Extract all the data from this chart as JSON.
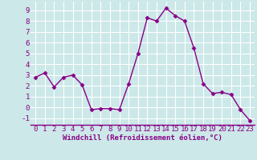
{
  "x": [
    0,
    1,
    2,
    3,
    4,
    5,
    6,
    7,
    8,
    9,
    10,
    11,
    12,
    13,
    14,
    15,
    16,
    17,
    18,
    19,
    20,
    21,
    22,
    23
  ],
  "y": [
    2.8,
    3.2,
    1.9,
    2.8,
    3.0,
    2.1,
    -0.2,
    -0.1,
    -0.1,
    -0.2,
    2.2,
    5.0,
    8.3,
    8.0,
    9.2,
    8.5,
    8.0,
    5.5,
    2.2,
    1.3,
    1.4,
    1.2,
    -0.2,
    -1.2
  ],
  "line_color": "#880088",
  "marker": "D",
  "marker_size": 2.5,
  "linewidth": 1.0,
  "bg_color": "#cce8e8",
  "grid_color": "#ffffff",
  "xlabel": "Windchill (Refroidissement éolien,°C)",
  "tick_color": "#880088",
  "xlim": [
    -0.5,
    23.5
  ],
  "ylim": [
    -1.6,
    9.8
  ],
  "yticks": [
    -1,
    0,
    1,
    2,
    3,
    4,
    5,
    6,
    7,
    8,
    9
  ],
  "xticks": [
    0,
    1,
    2,
    3,
    4,
    5,
    6,
    7,
    8,
    9,
    10,
    11,
    12,
    13,
    14,
    15,
    16,
    17,
    18,
    19,
    20,
    21,
    22,
    23
  ],
  "font_size_label": 6.5,
  "font_size_tick": 6.5
}
